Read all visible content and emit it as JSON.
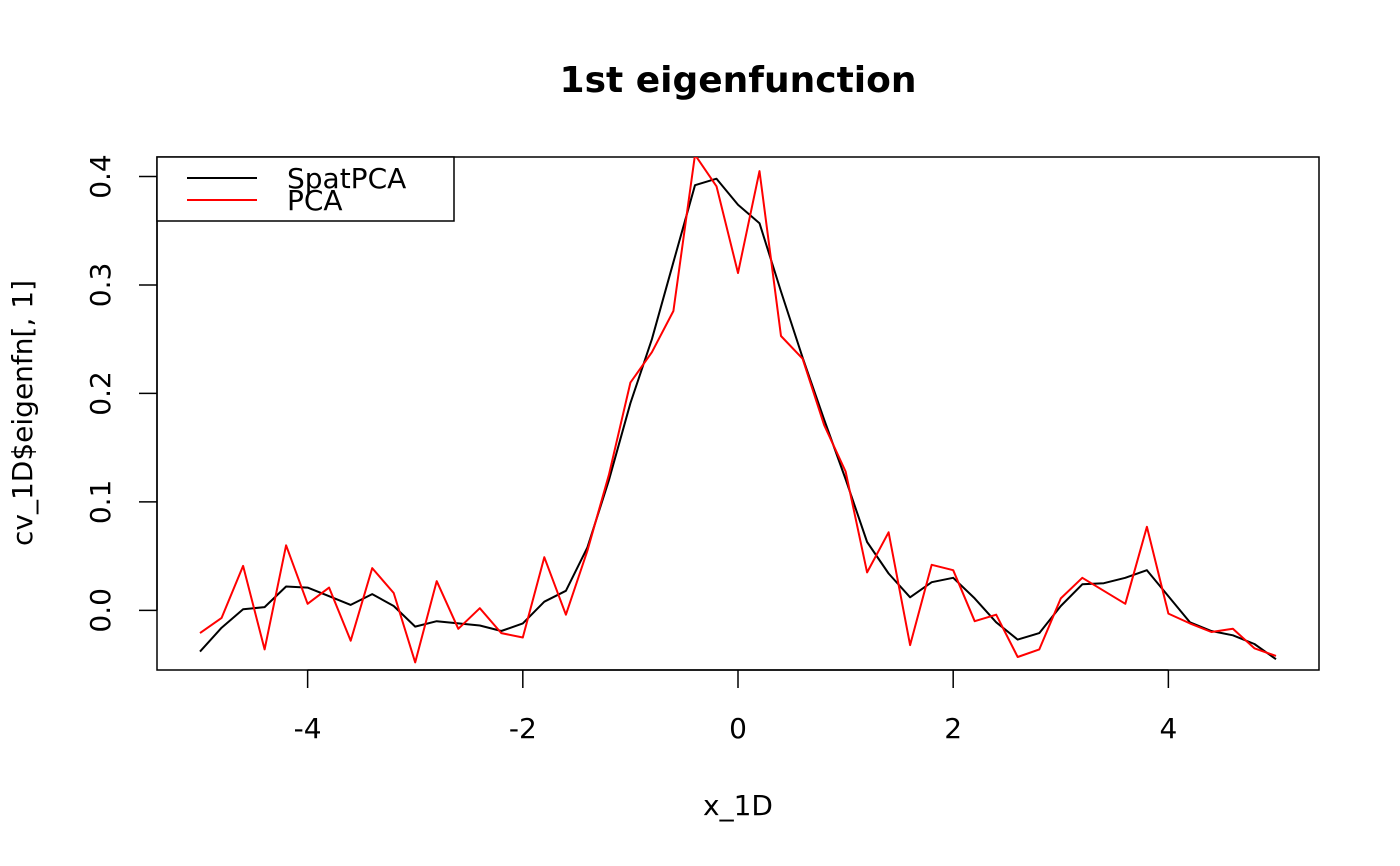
{
  "chart_data": {
    "type": "line",
    "title": "1st eigenfunction",
    "xlabel": "x_1D",
    "ylabel": "cv_1D$eigenfn[, 1]",
    "xlim": [
      -5.4,
      5.4
    ],
    "ylim": [
      -0.055,
      0.418
    ],
    "x_ticks": [
      -4,
      -2,
      0,
      2,
      4
    ],
    "x_tick_labels": [
      "-4",
      "-2",
      "0",
      "2",
      "4"
    ],
    "y_ticks": [
      0.0,
      0.1,
      0.2,
      0.3,
      0.4
    ],
    "y_tick_labels": [
      "0.0",
      "0.1",
      "0.2",
      "0.3",
      "0.4"
    ],
    "grid": false,
    "legend_position": "top-left",
    "x": [
      -5.0,
      -4.8,
      -4.6,
      -4.4,
      -4.2,
      -4.0,
      -3.8,
      -3.6,
      -3.4,
      -3.2,
      -3.0,
      -2.8,
      -2.6,
      -2.4,
      -2.2,
      -2.0,
      -1.8,
      -1.6,
      -1.4,
      -1.2,
      -1.0,
      -0.8,
      -0.6,
      -0.4,
      -0.2,
      0.0,
      0.2,
      0.4,
      0.6,
      0.8,
      1.0,
      1.2,
      1.4,
      1.6,
      1.8,
      2.0,
      2.2,
      2.4,
      2.6,
      2.8,
      3.0,
      3.2,
      3.4,
      3.6,
      3.8,
      4.0,
      4.2,
      4.4,
      4.6,
      4.8,
      5.0
    ],
    "series": [
      {
        "name": "SpatPCA",
        "color": "#000000",
        "values": [
          -0.038,
          -0.016,
          0.001,
          0.003,
          0.022,
          0.021,
          0.013,
          0.005,
          0.015,
          0.004,
          -0.015,
          -0.01,
          -0.012,
          -0.014,
          -0.019,
          -0.012,
          0.008,
          0.018,
          0.058,
          0.12,
          0.191,
          0.25,
          0.321,
          0.392,
          0.398,
          0.374,
          0.357,
          0.294,
          0.233,
          0.176,
          0.121,
          0.063,
          0.034,
          0.012,
          0.026,
          0.03,
          0.011,
          -0.011,
          -0.027,
          -0.021,
          0.004,
          0.024,
          0.025,
          0.03,
          0.037,
          0.013,
          -0.011,
          -0.019,
          -0.023,
          -0.031,
          -0.045
        ]
      },
      {
        "name": "PCA",
        "color": "#ff0000",
        "values": [
          -0.021,
          -0.007,
          0.041,
          -0.036,
          0.06,
          0.006,
          0.021,
          -0.028,
          0.039,
          0.016,
          -0.048,
          0.027,
          -0.017,
          0.002,
          -0.021,
          -0.025,
          0.049,
          -0.004,
          0.055,
          0.125,
          0.21,
          0.238,
          0.276,
          0.42,
          0.391,
          0.311,
          0.405,
          0.253,
          0.232,
          0.171,
          0.128,
          0.035,
          0.072,
          -0.032,
          0.042,
          0.037,
          -0.01,
          -0.004,
          -0.043,
          -0.036,
          0.011,
          0.03,
          0.018,
          0.006,
          0.077,
          -0.003,
          -0.012,
          -0.02,
          -0.017,
          -0.035,
          -0.042
        ]
      }
    ]
  }
}
